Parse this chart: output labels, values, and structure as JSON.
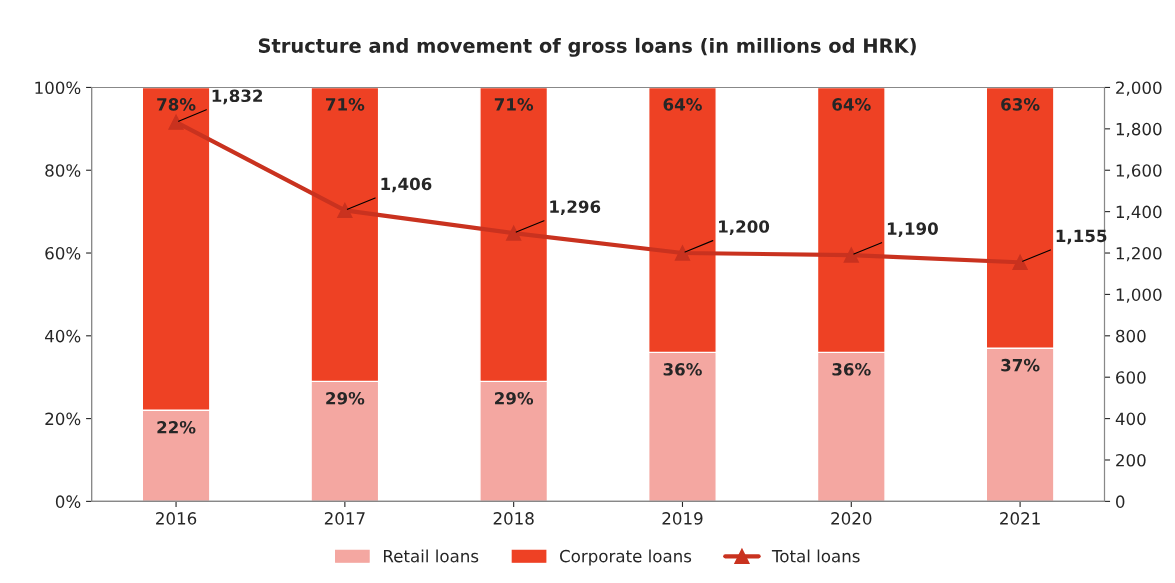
{
  "chart_data": {
    "type": "bar",
    "title": "Structure and movement of gross loans (in millions od HRK)",
    "categories": [
      "2016",
      "2017",
      "2018",
      "2019",
      "2020",
      "2021"
    ],
    "stacked": true,
    "series": [
      {
        "name": "Retail loans",
        "color": "#f4a7a1",
        "values": [
          22,
          29,
          29,
          36,
          36,
          37
        ],
        "value_labels": [
          "22%",
          "29%",
          "29%",
          "36%",
          "36%",
          "37%"
        ]
      },
      {
        "name": "Corporate loans",
        "color": "#ee4124",
        "values": [
          78,
          71,
          71,
          64,
          64,
          63
        ],
        "value_labels": [
          "78%",
          "71%",
          "71%",
          "64%",
          "64%",
          "63%"
        ]
      },
      {
        "name": "Total loans",
        "type": "line",
        "axis": "y2",
        "color": "#c9321f",
        "marker": "triangle",
        "values": [
          1832,
          1406,
          1296,
          1200,
          1190,
          1155
        ],
        "value_labels": [
          "1,832",
          "1,406",
          "1,296",
          "1,200",
          "1,190",
          "1,155"
        ]
      }
    ],
    "ylim": [
      0,
      100
    ],
    "yticks": [
      {
        "value": 0,
        "label": "0%"
      },
      {
        "value": 20,
        "label": "20%"
      },
      {
        "value": 40,
        "label": "40%"
      },
      {
        "value": 60,
        "label": "60%"
      },
      {
        "value": 80,
        "label": "80%"
      },
      {
        "value": 100,
        "label": "100%"
      }
    ],
    "y2lim": [
      0,
      2000
    ],
    "y2ticks": [
      0,
      200,
      400,
      600,
      800,
      {
        "value": 1000,
        "label": "1,000"
      },
      {
        "value": 1200,
        "label": "1,200"
      },
      {
        "value": 1400,
        "label": "1,400"
      },
      {
        "value": 1600,
        "label": "1,600"
      },
      {
        "value": 1800,
        "label": "1,800"
      },
      {
        "value": 2000,
        "label": "2,000"
      }
    ],
    "grid": false,
    "legend": "bottom"
  }
}
